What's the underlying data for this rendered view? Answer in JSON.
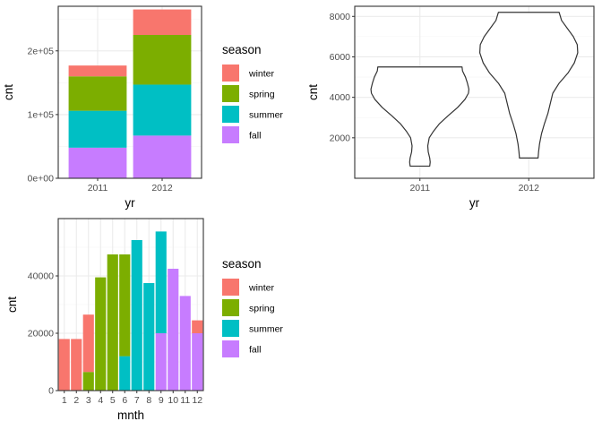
{
  "colors": {
    "winter": "#F8766D",
    "spring": "#7CAE00",
    "summer": "#00BFC4",
    "fall": "#C77CFF",
    "grid_major": "#ebebeb",
    "grid_minor": "#f5f5f5",
    "panel_border": "#333333"
  },
  "chart_data": [
    {
      "type": "bar",
      "stacked": true,
      "categories": [
        "2011",
        "2012"
      ],
      "series": [
        {
          "name": "fall",
          "values": [
            48000,
            67000
          ]
        },
        {
          "name": "summer",
          "values": [
            58000,
            80000
          ]
        },
        {
          "name": "spring",
          "values": [
            54000,
            78000
          ]
        },
        {
          "name": "winter",
          "values": [
            17000,
            40000
          ]
        }
      ],
      "xlabel": "yr",
      "ylabel": "cnt",
      "ylim": [
        0,
        270000
      ],
      "yticks": [
        0,
        100000,
        200000
      ],
      "ytick_labels": [
        "0e+00",
        "1e+05",
        "2e+05"
      ],
      "legend": {
        "title": "season",
        "position": "right",
        "items": [
          "winter",
          "spring",
          "summer",
          "fall"
        ]
      },
      "grid": true
    },
    {
      "type": "violin",
      "categories": [
        "2011",
        "2012"
      ],
      "series": [
        {
          "category": "2011",
          "min": 600,
          "max": 5500,
          "profile": [
            [
              600,
              0.2
            ],
            [
              800,
              0.21
            ],
            [
              1000,
              0.2
            ],
            [
              1300,
              0.17
            ],
            [
              1600,
              0.16
            ],
            [
              2000,
              0.19
            ],
            [
              2300,
              0.27
            ],
            [
              2700,
              0.4
            ],
            [
              3100,
              0.58
            ],
            [
              3500,
              0.77
            ],
            [
              3900,
              0.92
            ],
            [
              4200,
              0.99
            ],
            [
              4400,
              1.0
            ],
            [
              4700,
              0.97
            ],
            [
              5000,
              0.93
            ],
            [
              5300,
              0.87
            ],
            [
              5500,
              0.86
            ]
          ]
        },
        {
          "category": "2012",
          "min": 1000,
          "max": 8200,
          "profile": [
            [
              1000,
              0.19
            ],
            [
              1300,
              0.2
            ],
            [
              1700,
              0.22
            ],
            [
              2200,
              0.26
            ],
            [
              2700,
              0.32
            ],
            [
              3200,
              0.39
            ],
            [
              3700,
              0.44
            ],
            [
              4200,
              0.49
            ],
            [
              4700,
              0.62
            ],
            [
              5200,
              0.8
            ],
            [
              5700,
              0.93
            ],
            [
              6200,
              1.0
            ],
            [
              6600,
              0.99
            ],
            [
              7000,
              0.91
            ],
            [
              7400,
              0.79
            ],
            [
              7800,
              0.67
            ],
            [
              8200,
              0.62
            ]
          ]
        }
      ],
      "xlabel": "yr",
      "ylabel": "cnt",
      "ylim": [
        0,
        8500
      ],
      "yticks": [
        2000,
        4000,
        6000,
        8000
      ],
      "ytick_labels": [
        "2000",
        "4000",
        "6000",
        "8000"
      ],
      "grid": true
    },
    {
      "type": "bar",
      "stacked": true,
      "categories": [
        "1",
        "2",
        "3",
        "4",
        "5",
        "6",
        "7",
        "8",
        "9",
        "10",
        "11",
        "12"
      ],
      "series": [
        {
          "name": "fall",
          "values": [
            0,
            0,
            0,
            0,
            0,
            0,
            0,
            0,
            20000,
            42500,
            33000,
            20000
          ]
        },
        {
          "name": "summer",
          "values": [
            0,
            0,
            0,
            0,
            0,
            12000,
            52500,
            37500,
            35500,
            0,
            0,
            0
          ]
        },
        {
          "name": "spring",
          "values": [
            0,
            0,
            6500,
            39500,
            47500,
            35500,
            0,
            0,
            0,
            0,
            0,
            0
          ]
        },
        {
          "name": "winter",
          "values": [
            18000,
            18000,
            20000,
            0,
            0,
            0,
            0,
            0,
            0,
            0,
            0,
            4500
          ]
        }
      ],
      "xlabel": "mnth",
      "ylabel": "cnt",
      "ylim": [
        0,
        60000
      ],
      "yticks": [
        0,
        20000,
        40000
      ],
      "ytick_labels": [
        "0",
        "20000",
        "40000"
      ],
      "legend": {
        "title": "season",
        "position": "right",
        "items": [
          "winter",
          "spring",
          "summer",
          "fall"
        ]
      },
      "grid": true
    }
  ]
}
